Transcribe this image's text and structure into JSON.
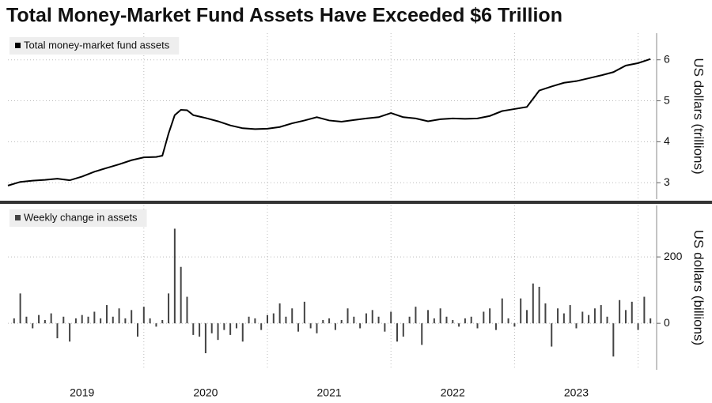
{
  "title": "Total Money-Market Fund Assets Have Exceeded $6 Trillion",
  "chart_data": [
    {
      "type": "line",
      "legend": "Total money-market fund assets",
      "ylabel": "US dollars (trillions)",
      "color": "#000000",
      "xlim": [
        2018.9,
        2024.15
      ],
      "ylim": [
        2.6,
        6.65
      ],
      "yticks": [
        3,
        4,
        5,
        6
      ],
      "xgrid": [
        2020,
        2021,
        2022,
        2023,
        2024
      ],
      "grid": true,
      "x": [
        2018.9,
        2019.0,
        2019.1,
        2019.2,
        2019.3,
        2019.4,
        2019.5,
        2019.6,
        2019.7,
        2019.8,
        2019.9,
        2020.0,
        2020.1,
        2020.15,
        2020.2,
        2020.25,
        2020.3,
        2020.35,
        2020.4,
        2020.5,
        2020.6,
        2020.7,
        2020.8,
        2020.9,
        2021.0,
        2021.1,
        2021.2,
        2021.3,
        2021.4,
        2021.5,
        2021.6,
        2021.7,
        2021.8,
        2021.9,
        2022.0,
        2022.1,
        2022.2,
        2022.3,
        2022.4,
        2022.5,
        2022.6,
        2022.7,
        2022.8,
        2022.9,
        2023.0,
        2023.1,
        2023.15,
        2023.2,
        2023.3,
        2023.4,
        2023.5,
        2023.6,
        2023.7,
        2023.8,
        2023.9,
        2024.0,
        2024.1
      ],
      "values": [
        2.93,
        3.02,
        3.05,
        3.07,
        3.1,
        3.06,
        3.15,
        3.27,
        3.36,
        3.45,
        3.55,
        3.62,
        3.63,
        3.66,
        4.2,
        4.65,
        4.78,
        4.77,
        4.65,
        4.58,
        4.5,
        4.4,
        4.33,
        4.31,
        4.32,
        4.36,
        4.45,
        4.52,
        4.6,
        4.52,
        4.49,
        4.53,
        4.57,
        4.6,
        4.7,
        4.6,
        4.57,
        4.5,
        4.55,
        4.57,
        4.56,
        4.57,
        4.63,
        4.75,
        4.8,
        4.85,
        5.05,
        5.25,
        5.35,
        5.44,
        5.48,
        5.55,
        5.62,
        5.7,
        5.86,
        5.92,
        6.02
      ]
    },
    {
      "type": "bar",
      "legend": "Weekly change in assets",
      "ylabel": "US dollars (billions)",
      "color": "#444444",
      "xlim": [
        2018.9,
        2024.15
      ],
      "ylim": [
        -140,
        355
      ],
      "yticks": [
        0,
        200
      ],
      "xgrid": [
        2020,
        2021,
        2022,
        2023,
        2024
      ],
      "grid": true,
      "xticks": [
        {
          "value": 2019.5,
          "label": "2019"
        },
        {
          "value": 2020.5,
          "label": "2020"
        },
        {
          "value": 2021.5,
          "label": "2021"
        },
        {
          "value": 2022.5,
          "label": "2022"
        },
        {
          "value": 2023.5,
          "label": "2023"
        }
      ],
      "x": [
        2018.95,
        2019.0,
        2019.05,
        2019.1,
        2019.15,
        2019.2,
        2019.25,
        2019.3,
        2019.35,
        2019.4,
        2019.45,
        2019.5,
        2019.55,
        2019.6,
        2019.65,
        2019.7,
        2019.75,
        2019.8,
        2019.85,
        2019.9,
        2019.95,
        2020.0,
        2020.05,
        2020.1,
        2020.15,
        2020.2,
        2020.25,
        2020.3,
        2020.35,
        2020.4,
        2020.45,
        2020.5,
        2020.55,
        2020.6,
        2020.65,
        2020.7,
        2020.75,
        2020.8,
        2020.85,
        2020.9,
        2020.95,
        2021.0,
        2021.05,
        2021.1,
        2021.15,
        2021.2,
        2021.25,
        2021.3,
        2021.35,
        2021.4,
        2021.45,
        2021.5,
        2021.55,
        2021.6,
        2021.65,
        2021.7,
        2021.75,
        2021.8,
        2021.85,
        2021.9,
        2021.95,
        2022.0,
        2022.05,
        2022.1,
        2022.15,
        2022.2,
        2022.25,
        2022.3,
        2022.35,
        2022.4,
        2022.45,
        2022.5,
        2022.55,
        2022.6,
        2022.65,
        2022.7,
        2022.75,
        2022.8,
        2022.85,
        2022.9,
        2022.95,
        2023.0,
        2023.05,
        2023.1,
        2023.15,
        2023.2,
        2023.25,
        2023.3,
        2023.35,
        2023.4,
        2023.45,
        2023.5,
        2023.55,
        2023.6,
        2023.65,
        2023.7,
        2023.75,
        2023.8,
        2023.85,
        2023.9,
        2023.95,
        2024.0,
        2024.05,
        2024.1
      ],
      "values": [
        15,
        90,
        20,
        -15,
        25,
        10,
        30,
        -45,
        20,
        -55,
        15,
        25,
        20,
        35,
        15,
        55,
        20,
        45,
        15,
        40,
        -40,
        50,
        15,
        -10,
        10,
        90,
        285,
        170,
        80,
        -35,
        -40,
        -90,
        -30,
        -50,
        -20,
        -35,
        -15,
        -55,
        20,
        15,
        -20,
        25,
        30,
        60,
        20,
        45,
        -25,
        65,
        -15,
        -30,
        10,
        15,
        -20,
        10,
        45,
        20,
        -15,
        30,
        40,
        20,
        -25,
        35,
        -55,
        -40,
        20,
        50,
        -65,
        40,
        15,
        45,
        20,
        10,
        -10,
        15,
        20,
        -15,
        35,
        45,
        -20,
        75,
        15,
        -10,
        75,
        40,
        120,
        110,
        60,
        -70,
        45,
        30,
        55,
        -15,
        35,
        25,
        45,
        55,
        20,
        -100,
        70,
        40,
        65,
        -20,
        80,
        15
      ]
    }
  ]
}
